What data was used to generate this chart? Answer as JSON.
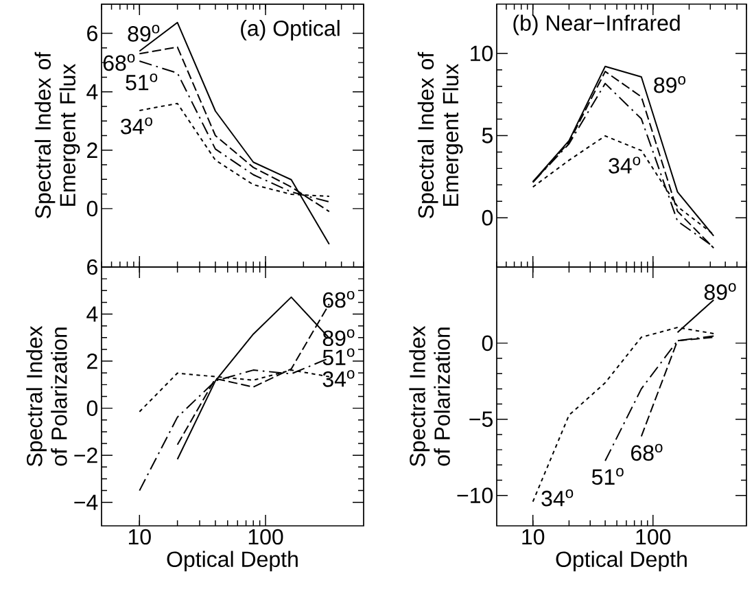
{
  "chart_data": [
    {
      "type": "line",
      "title": "(a) Optical",
      "ylabel": "Spectral Index of Emergent Flux",
      "log": "x",
      "tick_labels": "y",
      "xlim": [
        5,
        600
      ],
      "ylim": [
        -2,
        7
      ],
      "yticks": [
        0,
        2,
        4,
        6
      ],
      "series": [
        {
          "color": "#000000",
          "line_style": "solid",
          "x": [
            10,
            20,
            40,
            80,
            160,
            320
          ],
          "values": [
            5.39,
            6.37,
            3.34,
            1.59,
            0.99,
            -1.22
          ]
        },
        {
          "color": "#000000",
          "line_style": "dashed",
          "x": [
            10,
            20,
            40,
            80,
            160,
            320
          ],
          "values": [
            5.3,
            5.53,
            2.5,
            1.41,
            0.74,
            -0.1
          ]
        },
        {
          "color": "#000000",
          "line_style": "dashdot",
          "x": [
            10,
            20,
            40,
            80,
            160,
            320
          ],
          "values": [
            5.05,
            4.64,
            2.04,
            1.16,
            0.57,
            0.23
          ]
        },
        {
          "color": "#000000",
          "line_style": "dotted",
          "x": [
            10,
            20,
            40,
            80,
            160,
            320
          ],
          "values": [
            3.36,
            3.6,
            1.66,
            0.82,
            0.49,
            0.42
          ]
        }
      ],
      "annotations": [
        "89$^{o}$",
        "68$^{o}$",
        "51$^{o}$",
        "34$^{o}$"
      ]
    },
    {
      "type": "line",
      "title": "(b) Near−Infrared",
      "ylabel": "Spectral Index of Emergent Flux",
      "log": "x",
      "tick_labels": "y",
      "xlim": [
        5,
        600
      ],
      "ylim": [
        -3,
        13
      ],
      "yticks": [
        0,
        5,
        10
      ],
      "series": [
        {
          "color": "#000000",
          "line_style": "solid",
          "x": [
            10,
            20,
            40,
            80,
            160,
            320
          ],
          "values": [
            2.19,
            4.69,
            9.21,
            8.57,
            1.57,
            -1.1
          ]
        },
        {
          "color": "#000000",
          "line_style": "dashed",
          "x": [
            10,
            20,
            40,
            80,
            160,
            320
          ],
          "values": [
            2.16,
            4.6,
            8.9,
            7.36,
            0.39,
            -1.84
          ]
        },
        {
          "color": "#000000",
          "line_style": "dashdot",
          "x": [
            10,
            20,
            40,
            80,
            160,
            320
          ],
          "values": [
            2.16,
            4.5,
            8.17,
            6.02,
            -0.21,
            -1.77
          ]
        },
        {
          "color": "#000000",
          "line_style": "dotted",
          "x": [
            10,
            20,
            40,
            80,
            160,
            320
          ],
          "values": [
            1.87,
            3.5,
            4.98,
            4.09,
            0.68,
            -1.02
          ]
        }
      ],
      "annotations": [
        "89$^{o}$",
        "34$^{o}$"
      ]
    },
    {
      "type": "line",
      "ylabel": "Spectral Index of Polarization",
      "xlabel": "Optical Depth",
      "log": "x",
      "xlim": [
        5,
        600
      ],
      "ylim": [
        -5,
        6
      ],
      "xticks": [
        10,
        100
      ],
      "yticks": [
        {
          "value": -4,
          "label": "−4"
        },
        {
          "value": -2,
          "label": "−2"
        },
        0,
        2,
        4,
        6
      ],
      "series": [
        {
          "color": "#000000",
          "line_style": "solid",
          "x": [
            20,
            40,
            80,
            160,
            320
          ],
          "values": [
            -2.17,
            1.16,
            3.15,
            4.72,
            2.98
          ]
        },
        {
          "color": "#000000",
          "line_style": "dashed",
          "x": [
            20,
            40,
            80,
            160,
            320
          ],
          "values": [
            -1.55,
            1.26,
            0.9,
            1.67,
            4.43
          ]
        },
        {
          "color": "#000000",
          "line_style": "dashdot",
          "x": [
            10,
            20,
            40,
            80,
            160,
            320
          ],
          "values": [
            -3.5,
            -0.38,
            1.16,
            1.62,
            1.46,
            2.13
          ]
        },
        {
          "color": "#000000",
          "line_style": "dotted",
          "x": [
            10,
            20,
            40,
            80,
            160,
            320
          ],
          "values": [
            -0.15,
            1.49,
            1.34,
            1.19,
            1.62,
            1.34
          ]
        }
      ],
      "annotations": [
        "68$^{o}$",
        "89$^{o}$",
        "51$^{o}$",
        "34$^{o}$"
      ]
    },
    {
      "type": "line",
      "ylabel": "Spectral Index of Polarization",
      "xlabel": "Optical Depth",
      "log": "x",
      "xlim": [
        5,
        600
      ],
      "ylim": [
        -12,
        5
      ],
      "xticks": [
        10,
        100
      ],
      "yticks": [
        {
          "value": -10,
          "label": "−10"
        },
        {
          "value": -5,
          "label": "−5"
        },
        0
      ],
      "series": [
        {
          "color": "#000000",
          "line_style": "solid",
          "x": [
            160,
            320
          ],
          "values": [
            0.71,
            2.84
          ]
        },
        {
          "color": "#000000",
          "line_style": "dashed",
          "x": [
            80,
            160,
            320
          ],
          "values": [
            -6.12,
            0.16,
            0.39
          ]
        },
        {
          "color": "#000000",
          "line_style": "dashdot",
          "x": [
            40,
            80,
            160,
            320
          ],
          "values": [
            -7.73,
            -3.0,
            0.16,
            0.47
          ]
        },
        {
          "color": "#000000",
          "line_style": "dotted",
          "x": [
            10,
            20,
            40,
            80,
            160,
            320
          ],
          "values": [
            -10.41,
            -4.73,
            -2.6,
            0.39,
            1.03,
            0.63
          ]
        }
      ],
      "annotations": [
        "89$^{o}$",
        "68$^{o}$",
        "51$^{o}$",
        "34$^{o}$"
      ]
    }
  ]
}
